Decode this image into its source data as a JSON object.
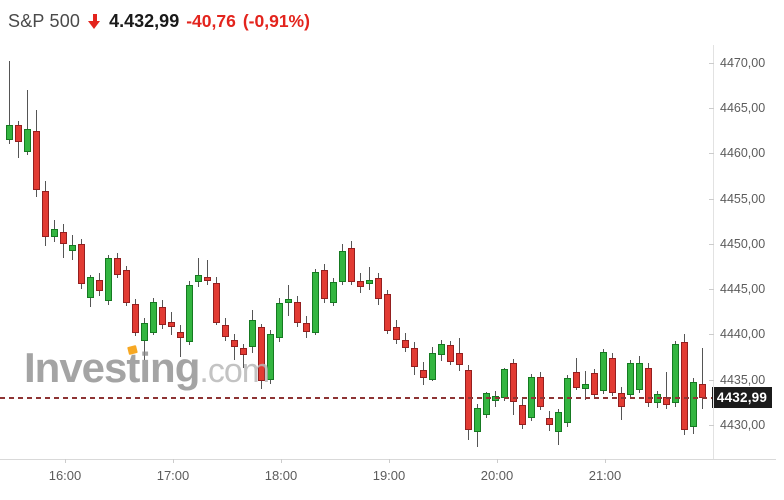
{
  "header": {
    "symbol": "S&P 500",
    "last": "4.432,99",
    "change": "-40,76",
    "change_pct": "(-0,91%)",
    "direction": "down"
  },
  "watermark": {
    "brand": "Investing",
    "suffix": ".com"
  },
  "price_line": {
    "value": 4432.99,
    "label": "4432,99"
  },
  "colors": {
    "up_fill": "#33b540",
    "up_border": "#157a21",
    "down_fill": "#e23b33",
    "down_border": "#941f1f",
    "wick": "#555555",
    "price_line": "#8e3434",
    "tag_bg": "#1b1b1b",
    "tag_text": "#ffffff",
    "axis_text": "#5c5c5c",
    "axis_line": "#e2e2e2",
    "header_text": "#4a4a4a",
    "price_text": "#1a1a1a",
    "change_text": "#e3241d",
    "watermark_main": "#8a8a8a",
    "watermark_suffix": "#b9b9b9",
    "watermark_accent": "#f7a823"
  },
  "chart_data": {
    "type": "candlestick",
    "title": "S&P 500 intraday",
    "interval": "5m",
    "grid": false,
    "legend": false,
    "x_ticks": [
      "16:00",
      "17:00",
      "18:00",
      "19:00",
      "20:00",
      "21:00"
    ],
    "y_ticks": {
      "values": [
        4470,
        4465,
        4460,
        4455,
        4450,
        4445,
        4440,
        4435,
        4430
      ],
      "labels": [
        "4470,00",
        "4465,00",
        "4460,00",
        "4455,00",
        "4450,00",
        "4445,00",
        "4440,00",
        "4435,00",
        "4430,00"
      ]
    },
    "ylim": [
      4426,
      4472
    ],
    "last_price": 4432.99,
    "ohlc": [
      [
        4461.5,
        4470.2,
        4461.0,
        4463.2
      ],
      [
        4463.2,
        4463.6,
        4459.5,
        4461.3
      ],
      [
        4460.2,
        4467.0,
        4459.8,
        4462.7
      ],
      [
        4462.5,
        4464.8,
        4455.2,
        4456.0
      ],
      [
        4455.8,
        4457.0,
        4449.8,
        4450.8
      ],
      [
        4450.8,
        4452.6,
        4450.2,
        4451.6
      ],
      [
        4451.3,
        4452.2,
        4448.4,
        4450.0
      ],
      [
        4449.2,
        4451.0,
        4448.2,
        4449.9
      ],
      [
        4450.0,
        4450.5,
        4445.0,
        4445.6
      ],
      [
        4444.0,
        4446.6,
        4443.0,
        4446.3
      ],
      [
        4446.0,
        4446.8,
        4444.2,
        4444.8
      ],
      [
        4443.7,
        4448.8,
        4443.2,
        4448.4
      ],
      [
        4448.5,
        4449.0,
        4446.2,
        4446.6
      ],
      [
        4447.1,
        4447.6,
        4443.1,
        4443.5
      ],
      [
        4443.4,
        4443.9,
        4439.8,
        4440.2
      ],
      [
        4439.3,
        4441.8,
        4437.2,
        4441.3
      ],
      [
        4440.2,
        4444.0,
        4439.9,
        4443.6
      ],
      [
        4443.0,
        4443.8,
        4440.6,
        4441.0
      ],
      [
        4441.4,
        4442.5,
        4439.9,
        4440.8
      ],
      [
        4440.3,
        4441.0,
        4437.5,
        4439.6
      ],
      [
        4439.1,
        4445.9,
        4438.8,
        4445.5
      ],
      [
        4445.8,
        4448.5,
        4445.3,
        4446.6
      ],
      [
        4446.3,
        4448.2,
        4445.4,
        4445.9
      ],
      [
        4445.7,
        4446.3,
        4441.0,
        4441.3
      ],
      [
        4441.0,
        4441.8,
        4439.3,
        4439.7
      ],
      [
        4439.4,
        4440.0,
        4437.2,
        4438.6
      ],
      [
        4438.5,
        4439.0,
        4436.3,
        4437.7
      ],
      [
        4438.6,
        4442.7,
        4437.9,
        4441.6
      ],
      [
        4440.8,
        4441.2,
        4434.0,
        4434.8
      ],
      [
        4435.0,
        4440.5,
        4434.5,
        4440.0
      ],
      [
        4439.6,
        4444.0,
        4439.2,
        4443.5
      ],
      [
        4443.5,
        4445.5,
        4442.0,
        4443.9
      ],
      [
        4443.6,
        4444.2,
        4440.8,
        4441.3
      ],
      [
        4441.3,
        4442.0,
        4439.6,
        4440.3
      ],
      [
        4440.2,
        4447.2,
        4439.9,
        4446.9
      ],
      [
        4447.1,
        4447.8,
        4443.5,
        4443.9
      ],
      [
        4443.5,
        4446.2,
        4443.1,
        4445.8
      ],
      [
        4445.8,
        4450.0,
        4445.5,
        4449.2
      ],
      [
        4449.5,
        4450.3,
        4445.5,
        4445.8
      ],
      [
        4445.9,
        4446.8,
        4444.6,
        4445.2
      ],
      [
        4445.6,
        4447.5,
        4444.9,
        4446.0
      ],
      [
        4446.2,
        4446.8,
        4443.3,
        4443.9
      ],
      [
        4444.5,
        4444.9,
        4440.0,
        4440.4
      ],
      [
        4440.8,
        4441.6,
        4438.9,
        4439.4
      ],
      [
        4439.4,
        4440.2,
        4438.0,
        4438.5
      ],
      [
        4438.5,
        4439.2,
        4435.5,
        4436.4
      ],
      [
        4436.1,
        4437.0,
        4434.4,
        4435.2
      ],
      [
        4435.0,
        4438.6,
        4434.8,
        4438.0
      ],
      [
        4437.7,
        4439.4,
        4437.0,
        4438.9
      ],
      [
        4438.8,
        4439.3,
        4436.6,
        4437.0
      ],
      [
        4438.0,
        4439.6,
        4436.0,
        4436.6
      ],
      [
        4436.1,
        4436.6,
        4428.3,
        4429.4
      ],
      [
        4429.2,
        4432.3,
        4427.5,
        4431.9
      ],
      [
        4431.1,
        4433.6,
        4430.7,
        4433.5
      ],
      [
        4432.6,
        4433.8,
        4432.0,
        4433.2
      ],
      [
        4433.0,
        4436.3,
        4432.6,
        4436.2
      ],
      [
        4436.9,
        4437.3,
        4431.1,
        4432.5
      ],
      [
        4432.2,
        4433.0,
        4429.6,
        4430.0
      ],
      [
        4430.8,
        4435.6,
        4430.4,
        4435.3
      ],
      [
        4435.3,
        4435.8,
        4431.6,
        4432.0
      ],
      [
        4430.8,
        4431.5,
        4429.3,
        4430.0
      ],
      [
        4429.2,
        4431.8,
        4427.8,
        4431.4
      ],
      [
        4430.2,
        4435.5,
        4429.8,
        4435.2
      ],
      [
        4435.9,
        4437.4,
        4433.9,
        4434.1
      ],
      [
        4434.0,
        4436.0,
        4432.8,
        4434.5
      ],
      [
        4435.7,
        4436.2,
        4433.0,
        4433.3
      ],
      [
        4433.7,
        4438.4,
        4433.4,
        4438.1
      ],
      [
        4437.4,
        4438.0,
        4433.2,
        4433.5
      ],
      [
        4433.5,
        4434.2,
        4430.5,
        4432.0
      ],
      [
        4433.3,
        4437.2,
        4432.9,
        4436.9
      ],
      [
        4433.9,
        4437.6,
        4433.5,
        4436.9
      ],
      [
        4436.3,
        4436.8,
        4432.0,
        4432.4
      ],
      [
        4432.4,
        4433.8,
        4431.9,
        4433.4
      ],
      [
        4433.1,
        4435.9,
        4431.8,
        4432.2
      ],
      [
        4432.4,
        4439.3,
        4432.0,
        4438.9
      ],
      [
        4439.2,
        4440.0,
        4428.9,
        4429.4
      ],
      [
        4429.8,
        4435.2,
        4429.0,
        4434.8
      ],
      [
        4434.5,
        4438.5,
        4431.8,
        4432.99
      ]
    ]
  }
}
